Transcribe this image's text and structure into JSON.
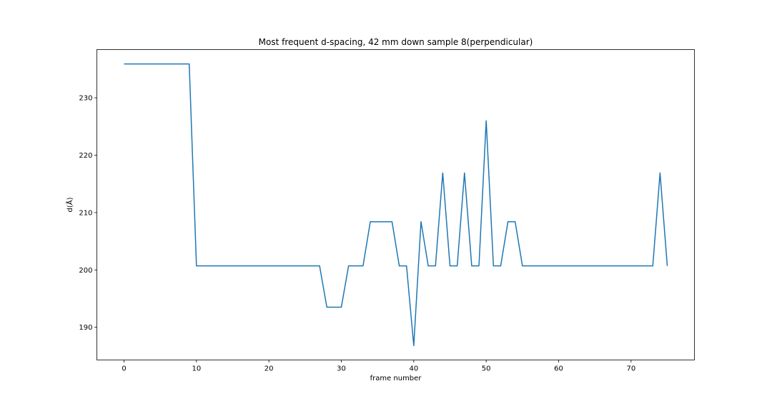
{
  "chart_data": {
    "type": "line",
    "title": "Most frequent d-spacing, 42 mm down sample 8(perpendicular)",
    "xlabel": "frame number",
    "ylabel": "d(Å)",
    "xlim": [
      -3.75,
      78.75
    ],
    "ylim": [
      184.3,
      238.4
    ],
    "xticks": [
      0,
      10,
      20,
      30,
      40,
      50,
      60,
      70
    ],
    "yticks": [
      190,
      200,
      210,
      220,
      230
    ],
    "grid": false,
    "series": [
      {
        "color": "#1f77b4",
        "x": [
          0,
          1,
          2,
          3,
          4,
          5,
          6,
          7,
          8,
          9,
          10,
          11,
          12,
          13,
          14,
          15,
          16,
          17,
          18,
          19,
          20,
          21,
          22,
          23,
          24,
          25,
          26,
          27,
          28,
          29,
          30,
          31,
          32,
          33,
          34,
          35,
          36,
          37,
          38,
          39,
          40,
          41,
          42,
          43,
          44,
          45,
          46,
          47,
          48,
          49,
          50,
          51,
          52,
          53,
          54,
          55,
          56,
          57,
          58,
          59,
          60,
          61,
          62,
          63,
          64,
          65,
          66,
          67,
          68,
          69,
          70,
          71,
          72,
          73,
          74,
          75
        ],
        "y": [
          235.9,
          235.9,
          235.9,
          235.9,
          235.9,
          235.9,
          235.9,
          235.9,
          235.9,
          235.9,
          200.7,
          200.7,
          200.7,
          200.7,
          200.7,
          200.7,
          200.7,
          200.7,
          200.7,
          200.7,
          200.7,
          200.7,
          200.7,
          200.7,
          200.7,
          200.7,
          200.7,
          200.7,
          193.5,
          193.5,
          193.5,
          200.7,
          200.7,
          200.7,
          208.4,
          208.4,
          208.4,
          208.4,
          200.7,
          200.7,
          186.8,
          208.4,
          200.7,
          200.7,
          216.9,
          200.7,
          200.7,
          216.9,
          200.7,
          200.7,
          226.0,
          200.7,
          200.7,
          208.4,
          208.4,
          200.7,
          200.7,
          200.7,
          200.7,
          200.7,
          200.7,
          200.7,
          200.7,
          200.7,
          200.7,
          200.7,
          200.7,
          200.7,
          200.7,
          200.7,
          200.7,
          200.7,
          200.7,
          200.7,
          216.9,
          200.7
        ]
      }
    ]
  }
}
